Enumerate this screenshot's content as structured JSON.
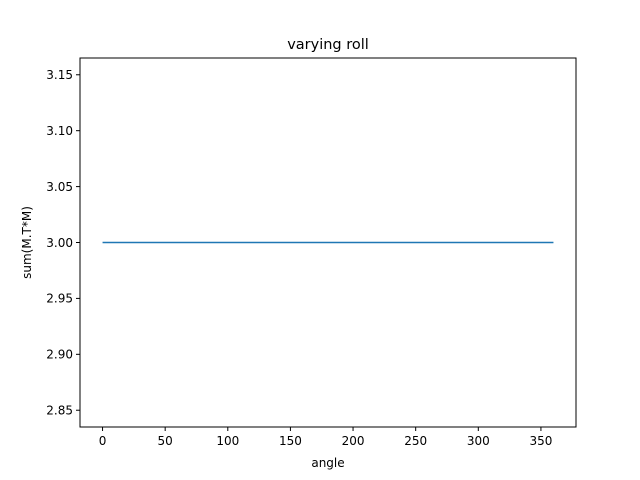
{
  "chart_data": {
    "type": "line",
    "title": "varying roll",
    "xlabel": "angle",
    "ylabel": "sum(M.T*M)",
    "xlim": [
      -18,
      378
    ],
    "ylim": [
      2.835,
      3.165
    ],
    "xticks": [
      0,
      50,
      100,
      150,
      200,
      250,
      300,
      350
    ],
    "yticks": [
      2.85,
      2.9,
      2.95,
      3.0,
      3.05,
      3.1,
      3.15
    ],
    "ytick_labels": [
      "2.85",
      "2.90",
      "2.95",
      "3.00",
      "3.05",
      "3.10",
      "3.15"
    ],
    "grid": false,
    "series": [
      {
        "x": [
          0,
          360
        ],
        "y": [
          3.0,
          3.0
        ],
        "color": "#1f77b4"
      }
    ]
  }
}
